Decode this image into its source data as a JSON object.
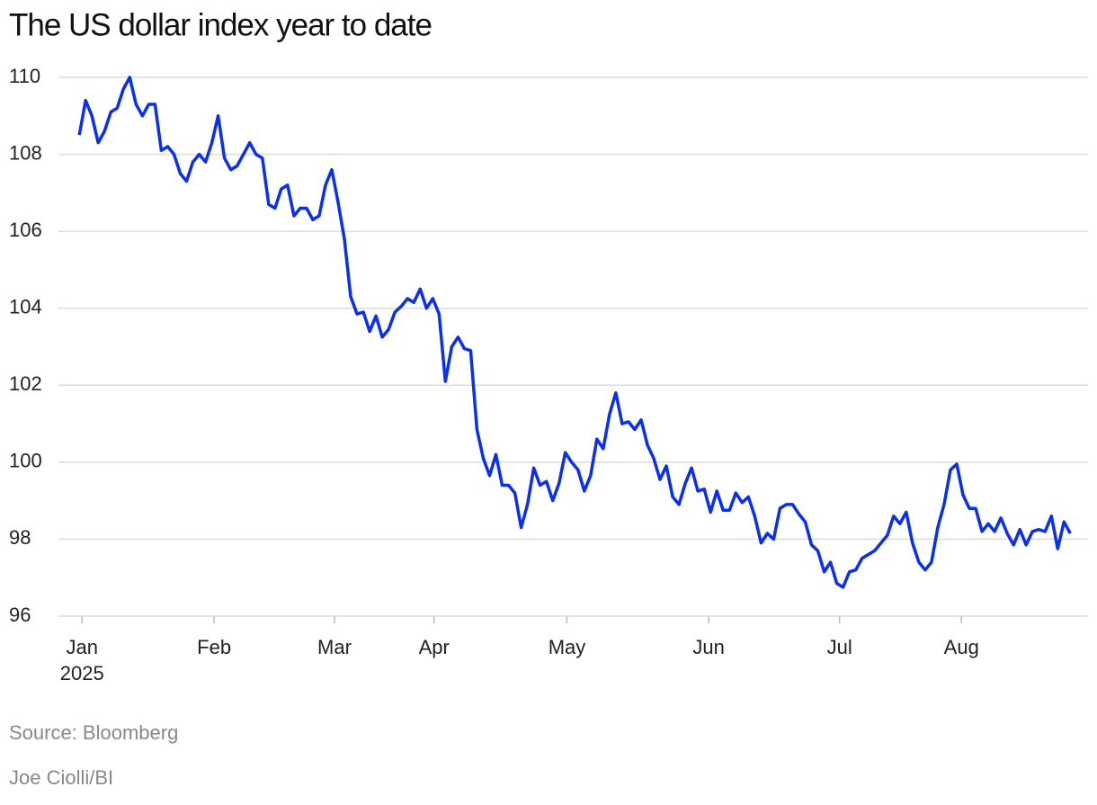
{
  "chart_data": {
    "type": "line",
    "title": "The US dollar index year to date",
    "color": "#0a2ff0",
    "grid": true,
    "values": [
      108.5,
      109.4,
      109.0,
      108.3,
      108.6,
      109.1,
      109.2,
      109.7,
      110.0,
      109.3,
      109.0,
      109.3,
      109.3,
      108.1,
      108.2,
      108.0,
      107.5,
      107.3,
      107.8,
      108.0,
      107.8,
      108.3,
      109.0,
      107.9,
      107.6,
      107.7,
      108.0,
      108.3,
      108.0,
      107.9,
      106.7,
      106.6,
      107.1,
      107.2,
      106.4,
      106.6,
      106.6,
      106.3,
      106.4,
      107.2,
      107.6,
      106.75,
      105.8,
      104.3,
      103.85,
      103.9,
      103.4,
      103.8,
      103.25,
      103.45,
      103.9,
      104.05,
      104.25,
      104.15,
      104.5,
      104.0,
      104.25,
      103.85,
      102.1,
      103.0,
      103.25,
      102.95,
      102.9,
      100.85,
      100.1,
      99.65,
      100.2,
      99.4,
      99.4,
      99.2,
      98.3,
      98.9,
      99.85,
      99.4,
      99.5,
      99.0,
      99.45,
      100.25,
      100.0,
      99.8,
      99.25,
      99.65,
      100.6,
      100.35,
      101.25,
      101.8,
      101.0,
      101.05,
      100.85,
      101.1,
      100.45,
      100.1,
      99.55,
      99.9,
      99.1,
      98.9,
      99.45,
      99.85,
      99.25,
      99.3,
      98.7,
      99.25,
      98.75,
      98.75,
      99.2,
      98.95,
      99.1,
      98.6,
      97.9,
      98.15,
      98.0,
      98.8,
      98.9,
      98.9,
      98.65,
      98.45,
      97.85,
      97.7,
      97.15,
      97.4,
      96.85,
      96.75,
      97.15,
      97.2,
      97.5,
      97.6,
      97.7,
      97.9,
      98.1,
      98.6,
      98.4,
      98.7,
      97.9,
      97.4,
      97.2,
      97.4,
      98.3,
      98.9,
      99.8,
      99.95,
      99.15,
      98.8,
      98.8,
      98.2,
      98.4,
      98.2,
      98.55,
      98.15,
      97.85,
      98.25,
      97.85,
      98.2,
      98.25,
      98.2,
      98.6,
      97.75,
      98.45,
      98.15
    ],
    "ylim": [
      96,
      110
    ],
    "yticks": [
      96,
      98,
      100,
      102,
      104,
      106,
      108,
      110
    ],
    "xlim": [
      -3.3,
      159.8
    ],
    "xticks": [
      {
        "value": 0.44,
        "label": "Jan"
      },
      {
        "value": 21.36,
        "label": "Feb"
      },
      {
        "value": 40.43,
        "label": "Mar"
      },
      {
        "value": 56.2,
        "label": "Apr"
      },
      {
        "value": 77.25,
        "label": "May"
      },
      {
        "value": 99.71,
        "label": "Jun"
      },
      {
        "value": 120.44,
        "label": "Jul"
      },
      {
        "value": 139.75,
        "label": "Aug"
      }
    ],
    "year_label": "2025",
    "source": "Source: Bloomberg",
    "credit": "Joe Ciolli/BI"
  }
}
